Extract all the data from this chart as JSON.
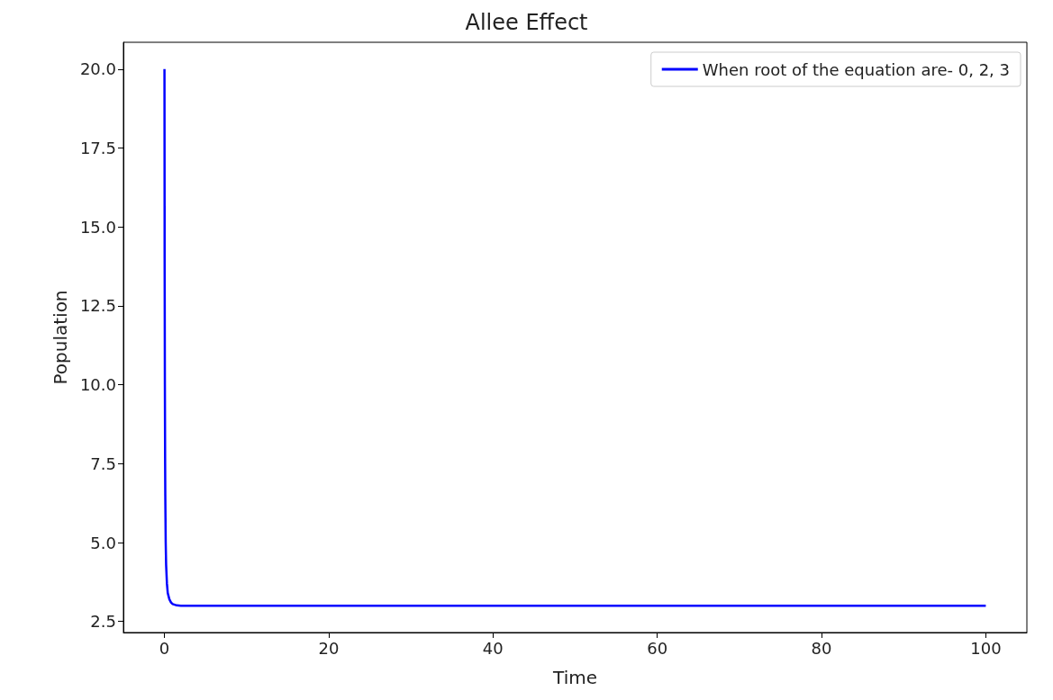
{
  "chart_data": {
    "type": "line",
    "title": "Allee Effect",
    "xlabel": "Time",
    "ylabel": "Population",
    "series": [
      {
        "name": "When root of the equation are- 0, 2, 3",
        "color": "#0000ff",
        "x": [
          0,
          0.02,
          0.05,
          0.08,
          0.1,
          0.15,
          0.2,
          0.3,
          0.4,
          0.6,
          0.8,
          1,
          1.5,
          2,
          5,
          10,
          20,
          40,
          60,
          80,
          100
        ],
        "values": [
          20,
          14,
          10,
          7.5,
          6.5,
          5,
          4.3,
          3.7,
          3.4,
          3.2,
          3.1,
          3.05,
          3.01,
          3,
          3,
          3,
          3,
          3,
          3,
          3,
          3
        ]
      }
    ],
    "xlim": [
      -5,
      105
    ],
    "xticks": [
      0,
      20,
      40,
      60,
      80,
      100
    ],
    "ylim": [
      2.15,
      20.85
    ],
    "yticks": [
      {
        "value": 2.5,
        "label": "2.5"
      },
      {
        "value": 5,
        "label": "5.0"
      },
      {
        "value": 7.5,
        "label": "7.5"
      },
      {
        "value": 10,
        "label": "10.0"
      },
      {
        "value": 12.5,
        "label": "12.5"
      },
      {
        "value": 15,
        "label": "15.0"
      },
      {
        "value": 17.5,
        "label": "17.5"
      },
      {
        "value": 20,
        "label": "20.0"
      }
    ],
    "grid": false,
    "legend": "top right",
    "marker": "none",
    "line_style": "solid"
  }
}
